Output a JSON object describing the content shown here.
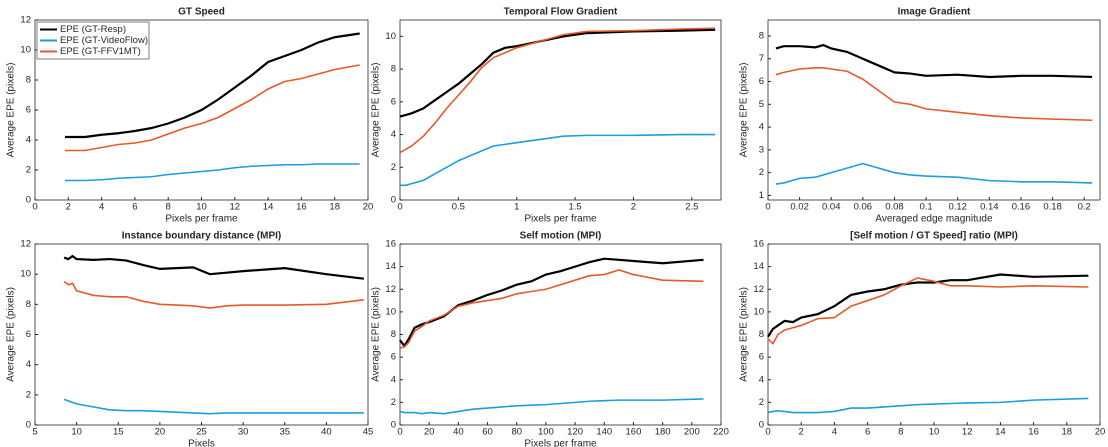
{
  "chart_data": [
    {
      "type": "line",
      "title": "GT Speed",
      "xlabel": "Pixels per frame",
      "ylabel": "Average EPE (pixels)",
      "legend": "upper left",
      "x": [
        1.8,
        2.5,
        3,
        4,
        5,
        6,
        7,
        8,
        9,
        10,
        11,
        12,
        13,
        14,
        15,
        16,
        17,
        18,
        19.5
      ],
      "series": [
        {
          "name": "EPE (GT-Resp)",
          "color": "#000000",
          "values": [
            4.2,
            4.2,
            4.2,
            4.35,
            4.45,
            4.6,
            4.8,
            5.1,
            5.5,
            6.0,
            6.7,
            7.5,
            8.3,
            9.2,
            9.6,
            10.0,
            10.5,
            10.85,
            11.1
          ]
        },
        {
          "name": "EPE (GT-VideoFlow)",
          "color": "#1a9ee0",
          "values": [
            1.3,
            1.3,
            1.3,
            1.35,
            1.45,
            1.5,
            1.55,
            1.7,
            1.8,
            1.9,
            2.0,
            2.15,
            2.25,
            2.3,
            2.35,
            2.35,
            2.4,
            2.4,
            2.4
          ]
        },
        {
          "name": "EPE (GT-FFV1MT)",
          "color": "#e8582a",
          "values": [
            3.3,
            3.3,
            3.3,
            3.5,
            3.7,
            3.8,
            4.0,
            4.4,
            4.8,
            5.1,
            5.5,
            6.1,
            6.7,
            7.4,
            7.9,
            8.1,
            8.4,
            8.7,
            9.0
          ]
        }
      ],
      "xlim": [
        0,
        20
      ],
      "xticks": [
        0,
        2,
        4,
        6,
        8,
        10,
        12,
        14,
        16,
        18,
        20
      ],
      "ylim": [
        0,
        12
      ],
      "yticks": [
        0,
        2,
        4,
        6,
        8,
        10,
        12
      ]
    },
    {
      "type": "line",
      "title": "Temporal Flow Gradient",
      "xlabel": "Pixels per frame",
      "ylabel": "Average EPE (pixels)",
      "x": [
        0,
        0.05,
        0.1,
        0.2,
        0.3,
        0.4,
        0.5,
        0.6,
        0.7,
        0.8,
        0.9,
        1.0,
        1.2,
        1.4,
        1.6,
        2.0,
        2.4,
        2.7
      ],
      "series": [
        {
          "color": "#000000",
          "values": [
            5.1,
            5.2,
            5.3,
            5.6,
            6.1,
            6.6,
            7.1,
            7.7,
            8.3,
            9.0,
            9.3,
            9.4,
            9.7,
            10.0,
            10.2,
            10.3,
            10.35,
            10.4
          ]
        },
        {
          "color": "#1a9ee0",
          "values": [
            0.9,
            0.9,
            1.0,
            1.2,
            1.6,
            2.0,
            2.4,
            2.7,
            3.0,
            3.3,
            3.4,
            3.5,
            3.7,
            3.9,
            3.95,
            3.95,
            4.0,
            4.0
          ]
        },
        {
          "color": "#e8582a",
          "values": [
            2.9,
            3.1,
            3.3,
            3.9,
            4.7,
            5.6,
            6.4,
            7.2,
            8.1,
            8.7,
            9.0,
            9.3,
            9.7,
            10.1,
            10.3,
            10.35,
            10.45,
            10.5
          ]
        }
      ],
      "xlim": [
        0,
        2.75
      ],
      "xticks": [
        0,
        0.5,
        1,
        1.5,
        2,
        2.5
      ],
      "ylim": [
        0,
        11
      ],
      "yticks": [
        0,
        2,
        4,
        6,
        8,
        10
      ]
    },
    {
      "type": "line",
      "title": "Image Gradient",
      "xlabel": "Averaged edge magnitude",
      "ylabel": "Average EPE (pixels)",
      "x": [
        0.005,
        0.01,
        0.02,
        0.03,
        0.035,
        0.04,
        0.05,
        0.06,
        0.07,
        0.08,
        0.09,
        0.1,
        0.12,
        0.14,
        0.16,
        0.18,
        0.205
      ],
      "series": [
        {
          "color": "#000000",
          "values": [
            7.45,
            7.55,
            7.55,
            7.5,
            7.6,
            7.45,
            7.3,
            7.0,
            6.7,
            6.4,
            6.35,
            6.25,
            6.3,
            6.2,
            6.25,
            6.25,
            6.2
          ]
        },
        {
          "color": "#1a9ee0",
          "values": [
            1.5,
            1.55,
            1.75,
            1.8,
            1.9,
            2.0,
            2.2,
            2.4,
            2.2,
            2.0,
            1.9,
            1.85,
            1.8,
            1.65,
            1.6,
            1.6,
            1.55
          ]
        },
        {
          "color": "#e8582a",
          "values": [
            6.3,
            6.4,
            6.55,
            6.6,
            6.6,
            6.55,
            6.45,
            6.1,
            5.6,
            5.1,
            5.0,
            4.8,
            4.65,
            4.5,
            4.4,
            4.35,
            4.3
          ]
        }
      ],
      "xlim": [
        0,
        0.21
      ],
      "xticks": [
        0,
        0.02,
        0.04,
        0.06,
        0.08,
        0.1,
        0.12,
        0.14,
        0.16,
        0.18,
        0.2
      ],
      "ylim": [
        0.8,
        8.7
      ],
      "yticks": [
        1,
        2,
        3,
        4,
        5,
        6,
        7,
        8
      ]
    },
    {
      "type": "line",
      "title": "Instance boundary distance (MPI)",
      "xlabel": "Pixels",
      "ylabel": "Average EPE (pixels)",
      "x": [
        8.5,
        9,
        9.5,
        10,
        12,
        14,
        16,
        18,
        20,
        22,
        24,
        26,
        28,
        30,
        35,
        40,
        44.5
      ],
      "series": [
        {
          "color": "#000000",
          "values": [
            11.1,
            11.0,
            11.2,
            11.0,
            10.95,
            11.0,
            10.9,
            10.6,
            10.35,
            10.4,
            10.45,
            10.0,
            10.1,
            10.2,
            10.4,
            10.0,
            9.7
          ]
        },
        {
          "color": "#1a9ee0",
          "values": [
            1.7,
            1.6,
            1.5,
            1.4,
            1.2,
            1.0,
            0.95,
            0.95,
            0.9,
            0.85,
            0.8,
            0.75,
            0.8,
            0.8,
            0.8,
            0.8,
            0.8
          ]
        },
        {
          "color": "#e8582a",
          "values": [
            9.5,
            9.3,
            9.4,
            8.9,
            8.6,
            8.5,
            8.5,
            8.2,
            8.0,
            7.95,
            7.9,
            7.75,
            7.9,
            7.95,
            7.95,
            8.0,
            8.3
          ]
        }
      ],
      "xlim": [
        5,
        45
      ],
      "xticks": [
        5,
        10,
        15,
        20,
        25,
        30,
        35,
        40,
        45
      ],
      "ylim": [
        0,
        12
      ],
      "yticks": [
        0,
        2,
        4,
        6,
        8,
        10,
        12
      ]
    },
    {
      "type": "line",
      "title": "Self motion (MPI)",
      "xlabel": "Pixels per frame",
      "ylabel": "Average EPE (pixels)",
      "x": [
        0,
        3,
        6,
        10,
        15,
        20,
        30,
        40,
        50,
        60,
        70,
        80,
        90,
        100,
        110,
        120,
        130,
        140,
        150,
        160,
        180,
        208
      ],
      "series": [
        {
          "color": "#000000",
          "values": [
            7.5,
            7.0,
            7.6,
            8.6,
            8.9,
            9.1,
            9.6,
            10.6,
            11.0,
            11.5,
            11.9,
            12.4,
            12.7,
            13.3,
            13.6,
            14.0,
            14.4,
            14.7,
            14.6,
            14.5,
            14.3,
            14.6
          ]
        },
        {
          "color": "#1a9ee0",
          "values": [
            1.2,
            1.1,
            1.1,
            1.1,
            1.0,
            1.1,
            1.0,
            1.2,
            1.4,
            1.5,
            1.6,
            1.7,
            1.75,
            1.8,
            1.9,
            2.0,
            2.1,
            2.15,
            2.2,
            2.2,
            2.2,
            2.3
          ]
        },
        {
          "color": "#e8582a",
          "values": [
            6.8,
            6.9,
            7.3,
            8.3,
            8.7,
            9.2,
            9.7,
            10.5,
            10.8,
            11.0,
            11.2,
            11.6,
            11.8,
            12.0,
            12.4,
            12.8,
            13.2,
            13.3,
            13.7,
            13.3,
            12.8,
            12.7
          ]
        }
      ],
      "xlim": [
        0,
        220
      ],
      "xticks": [
        0,
        20,
        40,
        60,
        80,
        100,
        120,
        140,
        160,
        180,
        200,
        220
      ],
      "ylim": [
        0,
        16
      ],
      "yticks": [
        0,
        2,
        4,
        6,
        8,
        10,
        12,
        14,
        16
      ]
    },
    {
      "type": "line",
      "title": "[Self motion / GT Speed] ratio (MPI)",
      "xlabel": "",
      "ylabel": "Average EPE (pixels)",
      "x": [
        0,
        0.3,
        0.6,
        1,
        1.5,
        2,
        3,
        4,
        5,
        6,
        7,
        8,
        9,
        10,
        11,
        12,
        14,
        16,
        19.3
      ],
      "series": [
        {
          "color": "#000000",
          "values": [
            7.8,
            8.5,
            8.8,
            9.2,
            9.1,
            9.5,
            9.8,
            10.5,
            11.5,
            11.8,
            12.0,
            12.4,
            12.6,
            12.6,
            12.8,
            12.8,
            13.3,
            13.1,
            13.2
          ]
        },
        {
          "color": "#1a9ee0",
          "values": [
            1.1,
            1.2,
            1.25,
            1.2,
            1.1,
            1.1,
            1.1,
            1.2,
            1.5,
            1.5,
            1.6,
            1.7,
            1.8,
            1.85,
            1.9,
            1.95,
            2.0,
            2.2,
            2.35
          ]
        },
        {
          "color": "#e8582a",
          "values": [
            7.6,
            7.2,
            8.0,
            8.4,
            8.6,
            8.8,
            9.4,
            9.5,
            10.5,
            11.0,
            11.5,
            12.3,
            13.0,
            12.7,
            12.3,
            12.3,
            12.2,
            12.3,
            12.2
          ]
        }
      ],
      "xlim": [
        0,
        20
      ],
      "xticks": [
        0,
        2,
        4,
        6,
        8,
        10,
        12,
        14,
        16,
        18,
        20
      ],
      "ylim": [
        0,
        16
      ],
      "yticks": [
        0,
        2,
        4,
        6,
        8,
        10,
        12,
        14,
        16
      ]
    }
  ]
}
